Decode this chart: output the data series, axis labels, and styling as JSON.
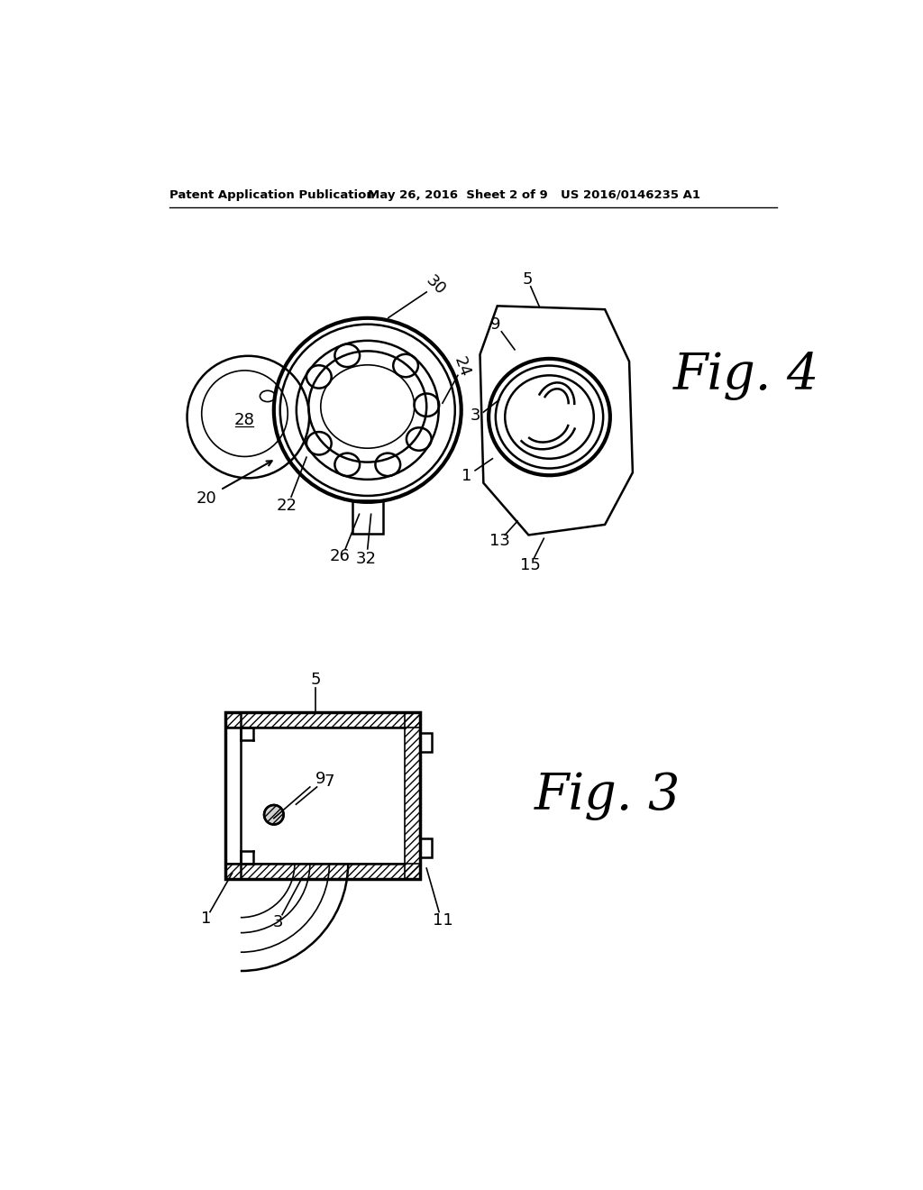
{
  "bg_color": "#ffffff",
  "header_left": "Patent Application Publication",
  "header_mid": "May 26, 2016  Sheet 2 of 9",
  "header_right": "US 2016/0146235 A1",
  "fig4_label": "Fig. 4",
  "fig3_label": "Fig. 3",
  "line_color": "#000000",
  "line_color_gray": "#444444"
}
